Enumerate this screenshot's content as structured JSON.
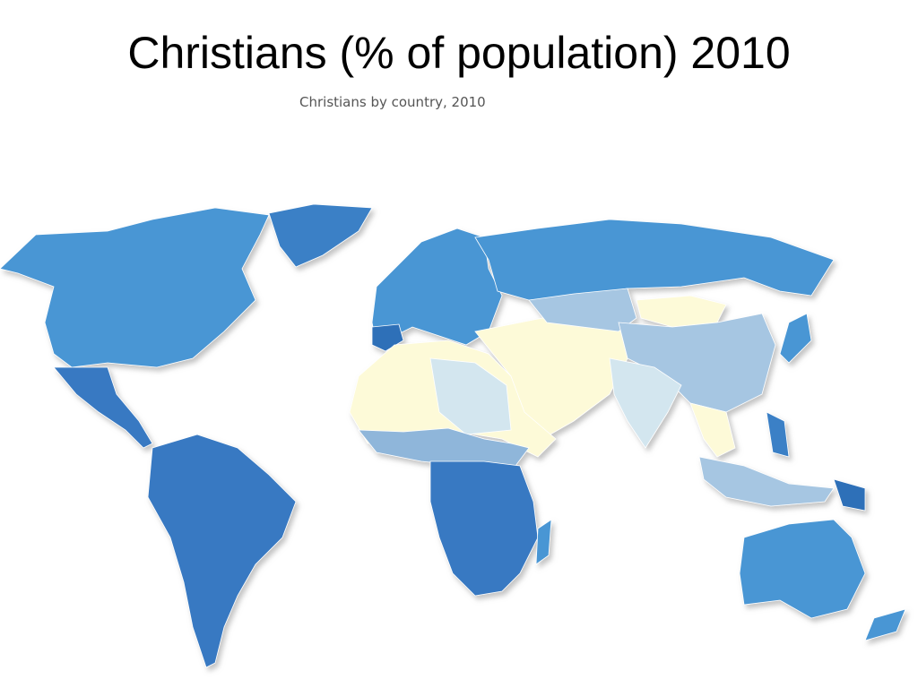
{
  "title": "Christians (% of population) 2010",
  "map": {
    "subtitle": "Christians by country, 2010"
  }
}
